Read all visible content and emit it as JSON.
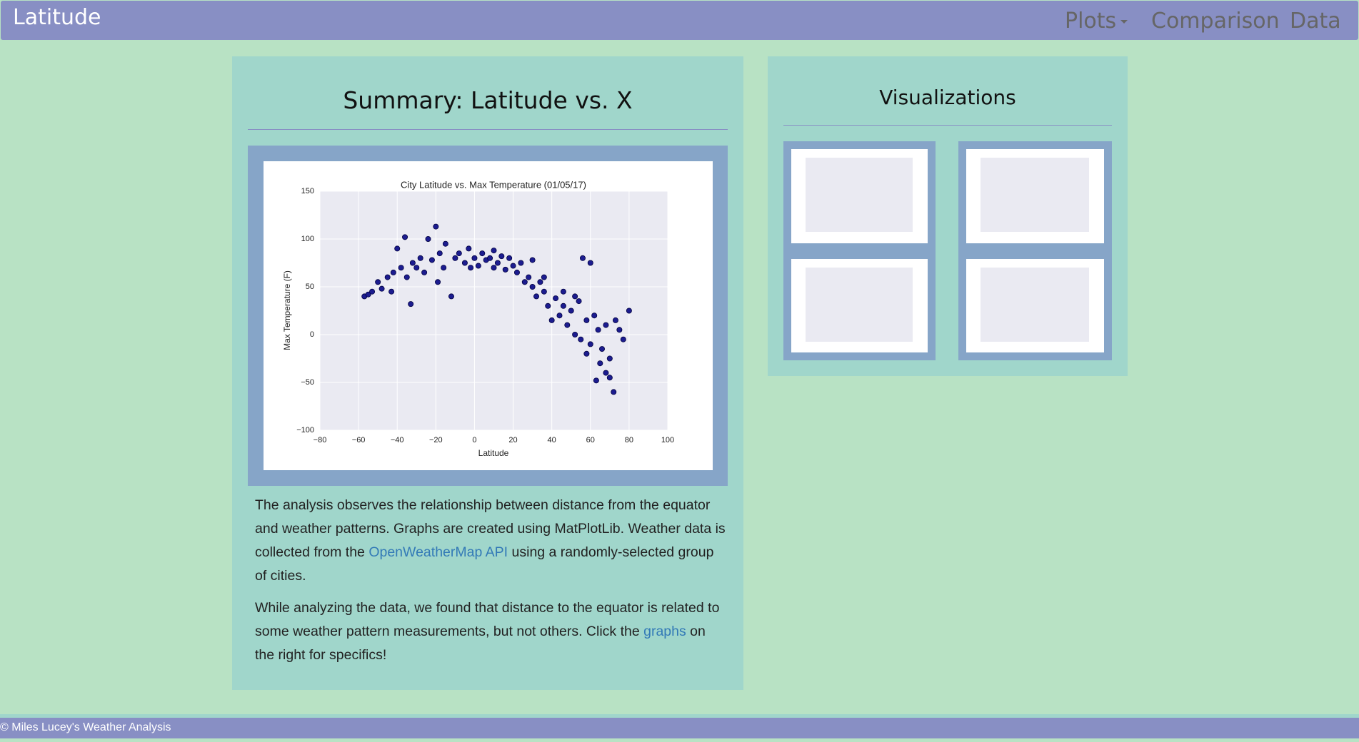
{
  "navbar": {
    "brand": "Latitude",
    "items": [
      "Plots",
      "Comparison",
      "Data"
    ]
  },
  "summary": {
    "title": "Summary: Latitude vs. X",
    "paragraphs": [
      {
        "before": "The analysis observes the relationship between distance from the equator and weather patterns. Graphs are created using MatPlotLib. Weather data is collected from the ",
        "link": "OpenWeatherMap API",
        "after": " using a randomly-selected group of cities."
      },
      {
        "before": "While analyzing the data, we found that distance to the equator is related to some weather pattern measurements, but not others. Click the ",
        "link": "graphs",
        "after": " on the right for specifics!"
      }
    ]
  },
  "chart_data": {
    "type": "scatter",
    "title": "City Latitude vs. Max Temperature (01/05/17)",
    "x_label": "Latitude",
    "y_label": "Max Temperature (F)",
    "color": "#1c1c8f",
    "grid": true,
    "x": [
      -57,
      -55,
      -53,
      -50,
      -48,
      -45,
      -43,
      -42,
      -40,
      -38,
      -36,
      -35,
      -33,
      -32,
      -30,
      -28,
      -26,
      -24,
      -22,
      -20,
      -19,
      -18,
      -16,
      -15,
      -12,
      -10,
      -8,
      -5,
      -3,
      0,
      2,
      4,
      6,
      8,
      10,
      12,
      14,
      16,
      18,
      20,
      22,
      24,
      26,
      28,
      30,
      32,
      34,
      36,
      38,
      40,
      42,
      44,
      46,
      48,
      50,
      52,
      54,
      55,
      56,
      58,
      60,
      60,
      62,
      64,
      65,
      66,
      68,
      68,
      70,
      70,
      72,
      73,
      75,
      77,
      80,
      36,
      30,
      10,
      -2,
      52,
      46,
      58,
      63
    ],
    "y": [
      40,
      42,
      45,
      55,
      48,
      60,
      45,
      65,
      90,
      70,
      102,
      60,
      32,
      75,
      70,
      80,
      65,
      100,
      78,
      113,
      55,
      85,
      70,
      95,
      40,
      80,
      85,
      75,
      90,
      80,
      72,
      85,
      78,
      80,
      70,
      75,
      82,
      68,
      80,
      72,
      65,
      75,
      55,
      60,
      50,
      40,
      55,
      45,
      30,
      15,
      38,
      20,
      30,
      10,
      25,
      0,
      35,
      -5,
      80,
      15,
      75,
      -10,
      20,
      5,
      -30,
      -15,
      -40,
      10,
      -25,
      -45,
      -60,
      15,
      5,
      -5,
      25,
      60,
      78,
      88,
      70,
      40,
      45,
      -20,
      -48
    ],
    "xlim": [
      -80,
      100
    ],
    "xticks": [
      {
        "value": -80,
        "label": "−80"
      },
      {
        "value": -60,
        "label": "−60"
      },
      {
        "value": -40,
        "label": "−40"
      },
      {
        "value": -20,
        "label": "−20"
      },
      0,
      20,
      40,
      60,
      80,
      100
    ],
    "ylim": [
      -100,
      150
    ],
    "yticks": [
      {
        "value": -100,
        "label": "−100"
      },
      {
        "value": -50,
        "label": "−50"
      },
      0,
      50,
      100,
      150
    ]
  },
  "visualizations": {
    "title": "Visualizations"
  },
  "footer": {
    "text": "© Miles Lucey's Weather Analysis"
  }
}
